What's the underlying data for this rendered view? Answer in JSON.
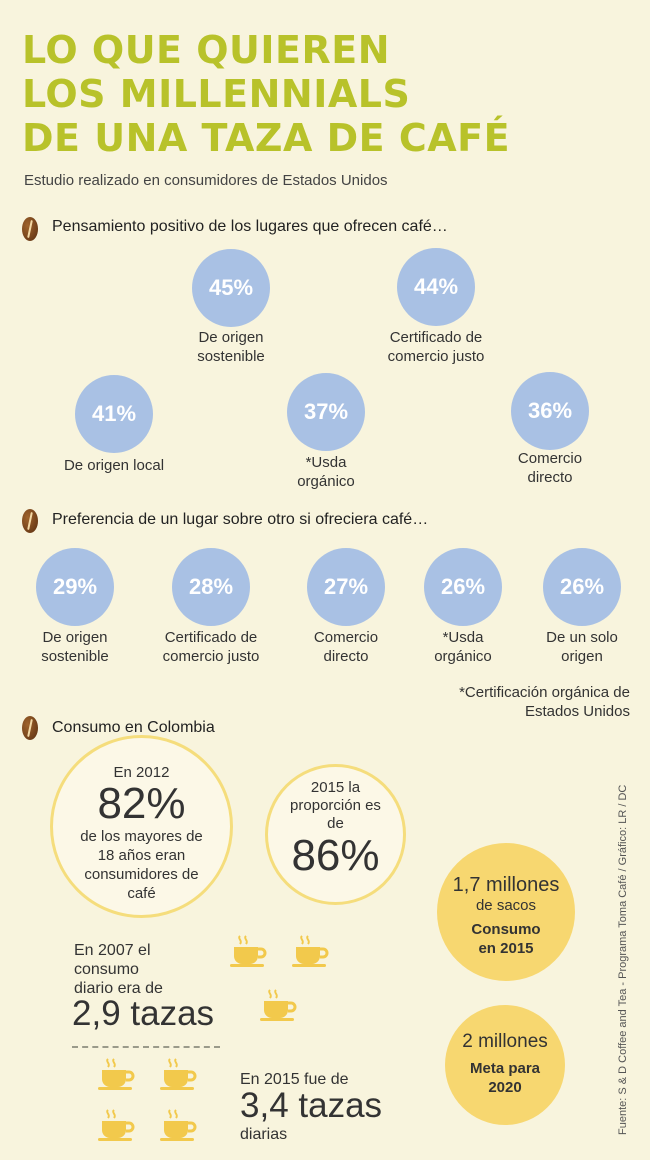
{
  "title": [
    "LO QUE QUIEREN",
    "LOS MILLENNIALS",
    "DE UNA TAZA DE CAFÉ"
  ],
  "subtitle": "Estudio realizado en consumidores de Estados Unidos",
  "colors": {
    "title": "#b8c22a",
    "circle_blue": "#a9c1e4",
    "yellow": "#f7d770",
    "ring": "#f5dd7c",
    "background": "#f8f4dd",
    "bean": "#7a4318"
  },
  "section1": {
    "title": "Pensamiento positivo de los lugares que ofrecen café…",
    "items": [
      {
        "value": "45%",
        "label": "De origen sostenible"
      },
      {
        "value": "44%",
        "label": "Certificado de comercio justo"
      },
      {
        "value": "41%",
        "label": "De origen local"
      },
      {
        "value": "37%",
        "label": "*Usda orgánico"
      },
      {
        "value": "36%",
        "label": "Comercio directo"
      }
    ]
  },
  "section2": {
    "title": "Preferencia de un lugar sobre otro si ofreciera café…",
    "items": [
      {
        "value": "29%",
        "label": "De origen sostenible"
      },
      {
        "value": "28%",
        "label": "Certificado de comercio justo"
      },
      {
        "value": "27%",
        "label": "Comercio directo"
      },
      {
        "value": "26%",
        "label": "*Usda orgánico"
      },
      {
        "value": "26%",
        "label": "De un solo origen"
      }
    ],
    "note": "*Certificación orgánica de Estados Unidos"
  },
  "section3": {
    "title": "Consumo en Colombia",
    "c2012": {
      "pre": "En 2012",
      "value": "82%",
      "desc": "de los mayores de 18 años eran consumidores de café"
    },
    "c2015": {
      "pre": "2015 la proporción es de",
      "value": "86%"
    },
    "sacks": {
      "value": "1,7 millones",
      "unit": "de sacos",
      "label": "Consumo en 2015"
    },
    "goal": {
      "value": "2 millones",
      "label": "Meta para 2020"
    },
    "cups2007": {
      "pre": "En 2007 el consumo diario era de",
      "value": "2,9 tazas",
      "cups": 3
    },
    "cups2015": {
      "pre": "En 2015 fue de",
      "value": "3,4 tazas",
      "post": "diarias",
      "cups": 4
    }
  },
  "source": "Fuente: S & D Coffee and Tea - Programa Toma Café / Gráfico: LR / DC"
}
